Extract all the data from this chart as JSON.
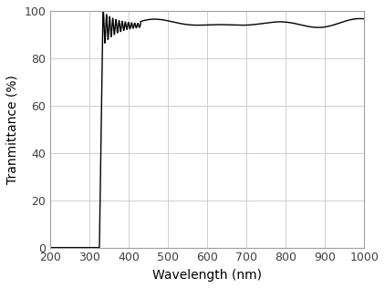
{
  "title": "",
  "xlabel": "Wavelength (nm)",
  "ylabel": "Tranmittance (%)",
  "xlim": [
    200,
    1000
  ],
  "ylim": [
    0,
    100
  ],
  "xticks": [
    200,
    300,
    400,
    500,
    600,
    700,
    800,
    900,
    1000
  ],
  "yticks": [
    0,
    20,
    40,
    60,
    80,
    100
  ],
  "line_color": "#000000",
  "line_width": 1.0,
  "grid_color": "#c8c8c8",
  "background_color": "#ffffff",
  "spine_color": "#a0a0a0",
  "figsize": [
    4.22,
    3.16
  ],
  "dpi": 100
}
